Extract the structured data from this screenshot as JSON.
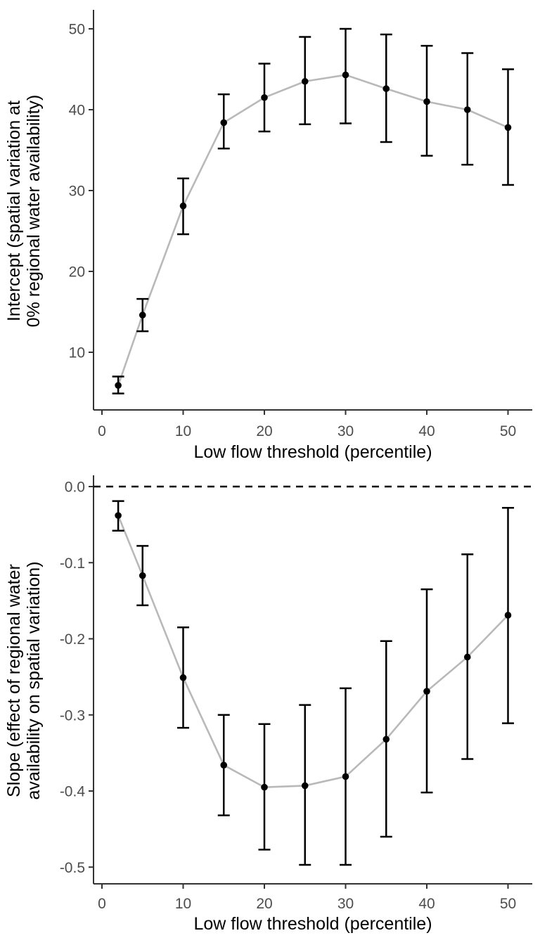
{
  "figure": {
    "background": "#ffffff",
    "point_color": "#000000",
    "errorbar_color": "#000000",
    "trend_line_color": "#b9b9b9",
    "axis_line_color": "#333333",
    "tick_label_color": "#4d4d4d",
    "axis_title_color": "#000000",
    "reference_line_color": "#000000",
    "charts": [
      {
        "id": "intercept",
        "x_title": "Low flow threshold (percentile)",
        "y_title_line1": "Intercept (spatial variation at",
        "y_title_line2": "0% regional water availability)",
        "x_tick_labels": [
          "0",
          "10",
          "20",
          "30",
          "40",
          "50"
        ],
        "y_tick_labels": [
          "10",
          "20",
          "30",
          "40",
          "50"
        ]
      },
      {
        "id": "slope",
        "x_title": "Low flow threshold (percentile)",
        "y_title_line1": "Slope (effect of regional water",
        "y_title_line2": "availability on spatial variation)",
        "x_tick_labels": [
          "0",
          "10",
          "20",
          "30",
          "40",
          "50"
        ],
        "y_tick_labels": [
          "0.0",
          "-0.1",
          "-0.2",
          "-0.3",
          "-0.4",
          "-0.5"
        ]
      }
    ]
  },
  "chart_data": [
    {
      "type": "scatter",
      "title": "",
      "xlabel": "Low flow threshold (percentile)",
      "ylabel": "Intercept (spatial variation at 0% regional water availability)",
      "x": [
        2,
        5,
        10,
        15,
        20,
        25,
        30,
        35,
        40,
        45,
        50
      ],
      "series": [
        {
          "name": "intercept estimate",
          "values": [
            5.9,
            14.6,
            28.1,
            38.4,
            41.5,
            43.5,
            44.3,
            42.6,
            41.0,
            40.0,
            37.8
          ]
        }
      ],
      "error_low": [
        4.9,
        12.6,
        24.6,
        35.2,
        37.3,
        38.2,
        38.3,
        36.0,
        34.3,
        33.2,
        30.7
      ],
      "error_high": [
        7.0,
        16.6,
        31.5,
        41.9,
        45.7,
        49.0,
        50.0,
        49.3,
        47.9,
        47.0,
        45.0
      ],
      "x_ticks": [
        0,
        10,
        20,
        30,
        40,
        50
      ],
      "y_ticks": [
        10,
        20,
        30,
        40,
        50
      ],
      "xlim": [
        -1,
        53
      ],
      "ylim": [
        3,
        52.5
      ],
      "grid": false,
      "legend": false,
      "connecting_line": true,
      "reference_line_y": null
    },
    {
      "type": "scatter",
      "title": "",
      "xlabel": "Low flow threshold (percentile)",
      "ylabel": "Slope (effect of regional water availability on spatial variation)",
      "x": [
        2,
        5,
        10,
        15,
        20,
        25,
        30,
        35,
        40,
        45,
        50
      ],
      "series": [
        {
          "name": "slope estimate",
          "values": [
            -0.038,
            -0.117,
            -0.251,
            -0.366,
            -0.395,
            -0.393,
            -0.381,
            -0.332,
            -0.269,
            -0.224,
            -0.169
          ]
        }
      ],
      "error_low": [
        -0.058,
        -0.156,
        -0.317,
        -0.432,
        -0.477,
        -0.497,
        -0.497,
        -0.46,
        -0.402,
        -0.358,
        -0.311
      ],
      "error_high": [
        -0.019,
        -0.078,
        -0.185,
        -0.3,
        -0.312,
        -0.287,
        -0.265,
        -0.203,
        -0.135,
        -0.089,
        -0.028
      ],
      "x_ticks": [
        0,
        10,
        20,
        30,
        40,
        50
      ],
      "y_ticks": [
        0,
        -0.1,
        -0.2,
        -0.3,
        -0.4,
        -0.5
      ],
      "xlim": [
        -1,
        53
      ],
      "ylim": [
        -0.525,
        0.01
      ],
      "grid": false,
      "legend": false,
      "connecting_line": true,
      "reference_line_y": 0
    }
  ]
}
